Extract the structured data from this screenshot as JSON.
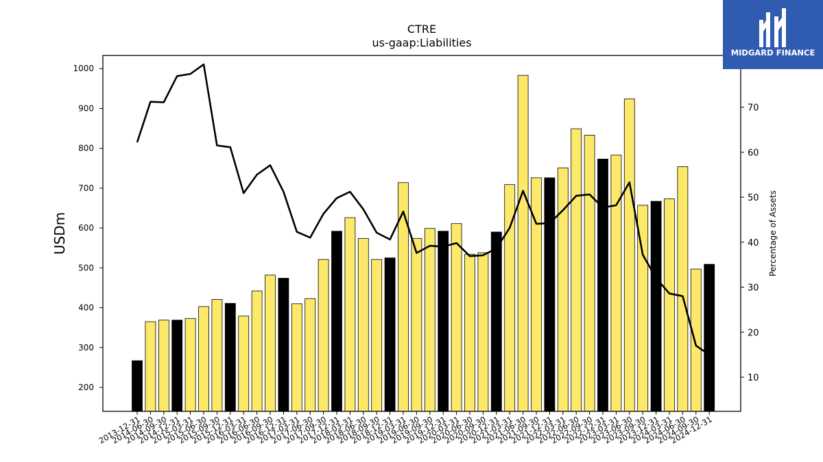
{
  "chart_data": {
    "type": "bar",
    "title": "CTRE",
    "subtitle": "us-gaap:Liabilities",
    "ylabel": "USDm",
    "y2label": "Percentage of Assets",
    "ylim": [
      140,
      1033
    ],
    "y2lim": [
      2.4,
      81.5
    ],
    "yticks": [
      200,
      300,
      400,
      500,
      600,
      700,
      800,
      900,
      1000
    ],
    "y2ticks": [
      10,
      20,
      30,
      40,
      50,
      60,
      70
    ],
    "bar_colors": {
      "quarter": "#fce96a",
      "year_end": "#000000"
    },
    "line_color": "#000000",
    "categories": [
      "2013-12-31",
      "2014-06-30",
      "2014-09-30",
      "2014-12-31",
      "2015-03-31",
      "2015-06-30",
      "2015-09-30",
      "2015-12-31",
      "2016-03-31",
      "2016-06-30",
      "2016-09-30",
      "2016-12-31",
      "2017-03-31",
      "2017-06-30",
      "2017-09-30",
      "2017-12-31",
      "2018-03-31",
      "2018-06-30",
      "2018-09-30",
      "2018-12-31",
      "2019-03-31",
      "2019-06-30",
      "2019-09-30",
      "2019-12-31",
      "2020-03-31",
      "2020-06-30",
      "2020-09-30",
      "2020-12-31",
      "2021-03-31",
      "2021-06-30",
      "2021-09-30",
      "2021-12-31",
      "2022-03-31",
      "2022-06-30",
      "2022-09-30",
      "2022-12-31",
      "2023-03-31",
      "2023-06-30",
      "2023-09-30",
      "2023-12-31",
      "2024-03-31",
      "2024-06-30",
      "2024-09-30",
      "2024-12-31"
    ],
    "series": [
      {
        "type": "bar",
        "values": [
          267,
          365,
          369,
          369,
          373,
          403,
          421,
          411,
          379,
          442,
          482,
          474,
          410,
          423,
          521,
          592,
          626,
          574,
          521,
          525,
          714,
          574,
          599,
          592,
          611,
          534,
          538,
          590,
          709,
          983,
          726,
          726,
          751,
          849,
          833,
          773,
          783,
          924,
          657,
          667,
          673,
          754,
          497,
          509
        ],
        "year_end": [
          true,
          false,
          false,
          true,
          false,
          false,
          false,
          true,
          false,
          false,
          false,
          true,
          false,
          false,
          false,
          true,
          false,
          false,
          false,
          true,
          false,
          false,
          false,
          true,
          false,
          false,
          false,
          true,
          false,
          false,
          false,
          true,
          false,
          false,
          false,
          true,
          false,
          false,
          false,
          true,
          false,
          false,
          false,
          true
        ]
      },
      {
        "type": "line",
        "axis": "right",
        "values": [
          62.2,
          71.2,
          71.1,
          76.9,
          77.4,
          79.5,
          61.5,
          61.1,
          50.9,
          55.0,
          57.1,
          51.2,
          42.3,
          41.0,
          46.3,
          49.8,
          51.2,
          47.3,
          42.1,
          40.6,
          46.8,
          37.6,
          39.2,
          39.0,
          39.8,
          36.9,
          37.1,
          38.6,
          43.2,
          51.4,
          44.1,
          44.2,
          47.1,
          50.3,
          50.6,
          47.7,
          48.2,
          53.3,
          37.2,
          32.0,
          28.6,
          28.0,
          17.0,
          15.0
        ]
      }
    ]
  },
  "logo": {
    "name": "MIDGARD FINANCE",
    "color": "#2f5bb0"
  }
}
